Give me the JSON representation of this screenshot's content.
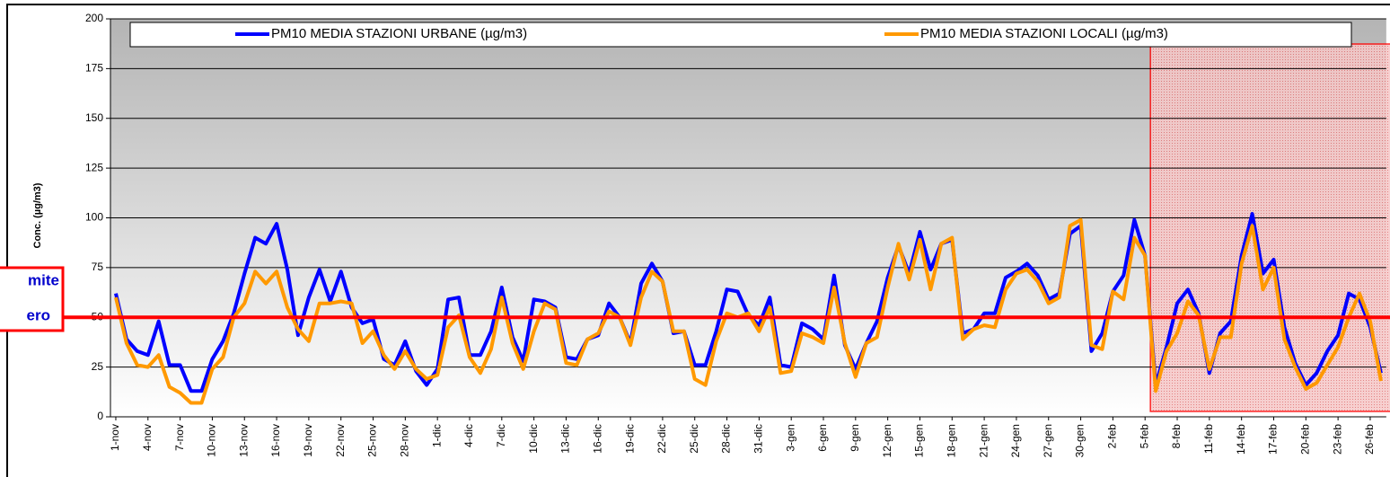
{
  "chart_data": {
    "type": "line",
    "y_label": "Conc. (µg/m3)",
    "annotations": [
      "mite",
      "ero"
    ],
    "limit_line": 50,
    "limit_color": "#ff0000",
    "categories": [
      "1-nov",
      null,
      null,
      "4-nov",
      null,
      null,
      "7-nov",
      null,
      null,
      "10-nov",
      null,
      null,
      "13-nov",
      null,
      null,
      "16-nov",
      null,
      null,
      "19-nov",
      null,
      null,
      "22-nov",
      null,
      null,
      "25-nov",
      null,
      null,
      "28-nov",
      null,
      null,
      "1-dic",
      null,
      null,
      "4-dic",
      null,
      null,
      "7-dic",
      null,
      null,
      "10-dic",
      null,
      null,
      "13-dic",
      null,
      null,
      "16-dic",
      null,
      null,
      "19-dic",
      null,
      null,
      "22-dic",
      null,
      null,
      "25-dic",
      null,
      null,
      "28-dic",
      null,
      null,
      "31-dic",
      null,
      null,
      "3-gen",
      null,
      null,
      "6-gen",
      null,
      null,
      "9-gen",
      null,
      null,
      "12-gen",
      null,
      null,
      "15-gen",
      null,
      null,
      "18-gen",
      null,
      null,
      "21-gen",
      null,
      null,
      "24-gen",
      null,
      null,
      "27-gen",
      null,
      null,
      "30-gen",
      null,
      null,
      "2-feb",
      null,
      null,
      "5-feb",
      null,
      null,
      "8-feb",
      null,
      null,
      "11-feb",
      null,
      null,
      "14-feb",
      null,
      null,
      "17-feb",
      null,
      null,
      "20-feb",
      null,
      null,
      "23-feb",
      null,
      null,
      "26-feb",
      null
    ],
    "series": [
      {
        "name": "PM10 MEDIA STAZIONI URBANE (µg/m3)",
        "color": "#0000ff",
        "values": [
          62,
          39,
          33,
          31,
          48,
          26,
          26,
          13,
          13,
          29,
          38,
          52,
          72,
          90,
          87,
          97,
          74,
          41,
          60,
          74,
          58,
          73,
          55,
          47,
          49,
          29,
          26,
          38,
          23,
          16,
          24,
          59,
          60,
          31,
          31,
          43,
          65,
          40,
          28,
          59,
          58,
          55,
          30,
          29,
          39,
          41,
          57,
          50,
          37,
          67,
          77,
          68,
          42,
          43,
          26,
          26,
          43,
          64,
          63,
          51,
          46,
          60,
          26,
          25,
          47,
          44,
          39,
          71,
          36,
          24,
          37,
          48,
          70,
          86,
          72,
          93,
          74,
          87,
          89,
          42,
          44,
          52,
          52,
          70,
          73,
          77,
          71,
          59,
          62,
          92,
          96,
          33,
          42,
          63,
          71,
          99,
          81,
          16,
          35,
          57,
          64,
          52,
          22,
          42,
          48,
          81,
          102,
          72,
          79,
          45,
          27,
          16,
          22,
          33,
          41,
          62,
          59,
          45,
          22
        ]
      },
      {
        "name": "PM10 MEDIA STAZIONI LOCALI (µg/m3)",
        "color": "#ff9900",
        "values": [
          60,
          37,
          26,
          25,
          31,
          15,
          12,
          7,
          7,
          24,
          30,
          50,
          57,
          73,
          67,
          73,
          55,
          44,
          38,
          57,
          57,
          58,
          57,
          37,
          43,
          31,
          24,
          33,
          24,
          19,
          21,
          45,
          51,
          30,
          22,
          34,
          60,
          37,
          24,
          43,
          57,
          54,
          27,
          26,
          39,
          42,
          53,
          50,
          36,
          60,
          73,
          68,
          43,
          43,
          19,
          16,
          38,
          52,
          50,
          52,
          43,
          55,
          22,
          23,
          42,
          40,
          37,
          65,
          37,
          20,
          37,
          40,
          65,
          87,
          69,
          89,
          64,
          87,
          90,
          39,
          44,
          46,
          45,
          64,
          72,
          74,
          68,
          57,
          60,
          96,
          99,
          36,
          34,
          63,
          59,
          90,
          81,
          13,
          33,
          42,
          58,
          51,
          24,
          40,
          40,
          77,
          96,
          64,
          75,
          39,
          25,
          14,
          17,
          26,
          35,
          50,
          62,
          48,
          18
        ]
      }
    ],
    "ylim": [
      0,
      200
    ],
    "yticks": [
      0,
      25,
      50,
      75,
      100,
      125,
      150,
      175,
      200
    ],
    "grid": true
  }
}
